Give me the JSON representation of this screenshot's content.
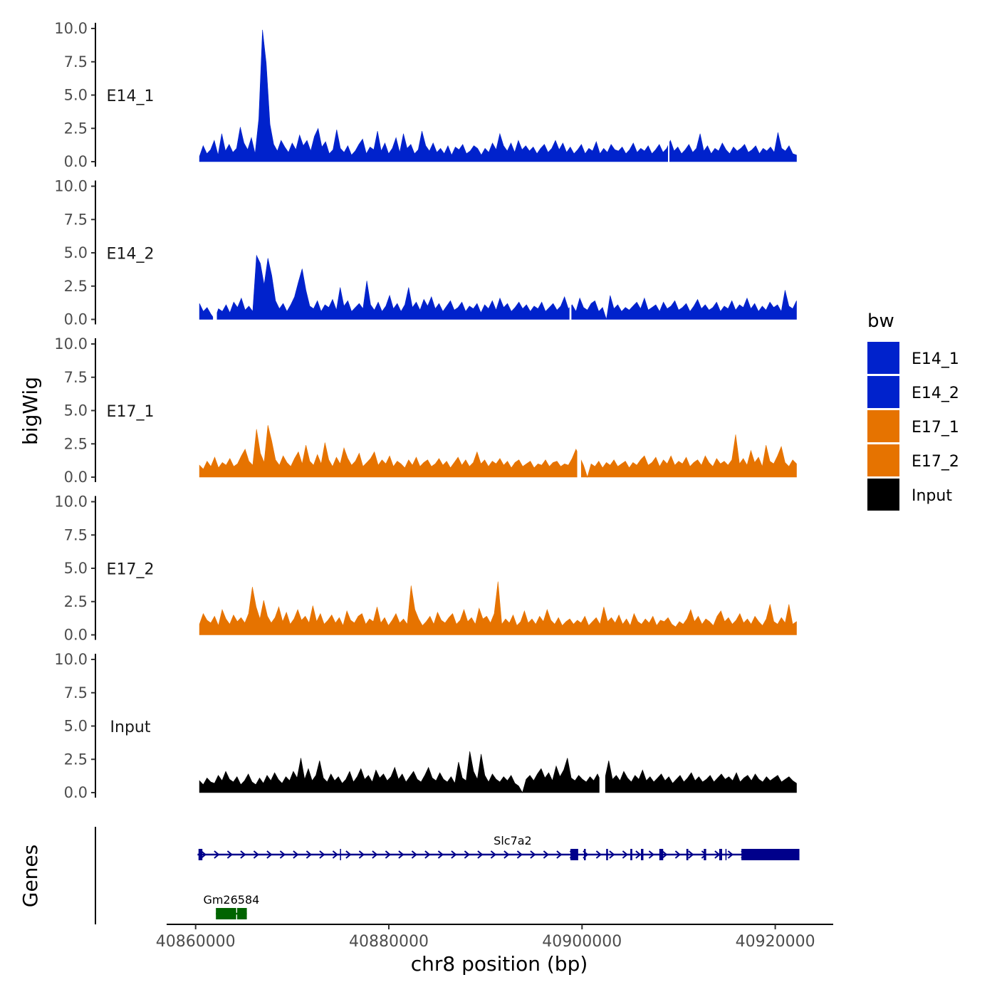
{
  "chart_data": {
    "type": "area",
    "subtype": "genome-track",
    "xlabel": "chr8 position (bp)",
    "ylabel": "bigWig",
    "gene_track_label": "Genes",
    "xlim": [
      40857000,
      40926000
    ],
    "x_ticks": [
      40860000,
      40880000,
      40900000,
      40920000
    ],
    "x_tick_labels": [
      "40860000",
      "40880000",
      "40900000",
      "40920000"
    ],
    "ylim": [
      0,
      10
    ],
    "y_ticks": [
      0,
      2.5,
      5,
      7.5,
      10
    ],
    "y_tick_labels": [
      "0.0",
      "2.5",
      "5.0",
      "7.5",
      "10.0"
    ],
    "legend": {
      "title": "bw",
      "entries": [
        {
          "label": "E14_1",
          "color": "#0022CC"
        },
        {
          "label": "E14_2",
          "color": "#0022CC"
        },
        {
          "label": "E17_1",
          "color": "#E67300"
        },
        {
          "label": "E17_2",
          "color": "#E67300"
        },
        {
          "label": "Input",
          "color": "#000000"
        }
      ]
    },
    "series": [
      {
        "name": "E14_1",
        "color": "#0022CC",
        "x_start": 40860400,
        "x_end": 40922200,
        "values": [
          0.4,
          1.2,
          0.6,
          0.9,
          1.6,
          0.5,
          2.1,
          0.8,
          1.3,
          0.7,
          1.0,
          2.6,
          1.4,
          0.9,
          1.8,
          0.6,
          3.2,
          9.9,
          7.4,
          2.8,
          1.3,
          0.8,
          1.6,
          1.1,
          0.7,
          1.4,
          0.9,
          2.0,
          1.2,
          1.6,
          0.8,
          1.9,
          2.5,
          1.1,
          1.5,
          0.6,
          0.9,
          2.4,
          1.0,
          0.7,
          1.2,
          0.5,
          0.8,
          1.3,
          1.7,
          0.6,
          1.1,
          0.9,
          2.3,
          0.8,
          1.4,
          0.6,
          1.0,
          1.8,
          0.7,
          2.1,
          1.0,
          1.3,
          0.6,
          0.9,
          2.3,
          1.2,
          0.8,
          1.4,
          0.7,
          1.0,
          0.6,
          1.2,
          0.5,
          1.1,
          0.9,
          1.3,
          0.6,
          0.8,
          1.2,
          1.0,
          0.5,
          1.0,
          0.7,
          1.4,
          0.9,
          2.1,
          1.2,
          0.8,
          1.4,
          0.7,
          1.6,
          0.9,
          1.2,
          0.8,
          1.1,
          0.6,
          1.0,
          1.3,
          0.7,
          1.0,
          1.6,
          0.9,
          1.4,
          0.7,
          1.1,
          0.6,
          0.9,
          1.3,
          0.6,
          1.0,
          0.8,
          1.5,
          0.6,
          1.0,
          0.7,
          1.3,
          0.9,
          0.8,
          1.1,
          0.6,
          0.9,
          1.4,
          0.7,
          1.0,
          0.8,
          1.2,
          0.6,
          0.9,
          1.3,
          0.7,
          1.0,
          1.6,
          0.8,
          1.1,
          0.6,
          0.9,
          1.3,
          0.7,
          1.0,
          2.1,
          0.8,
          1.2,
          0.6,
          1.0,
          0.8,
          1.4,
          0.9,
          0.6,
          1.1,
          0.8,
          1.0,
          1.3,
          0.7,
          0.9,
          1.2,
          0.6,
          1.0,
          0.8,
          1.1,
          0.7,
          2.2,
          1.0,
          0.8,
          1.2,
          0.6,
          0.5
        ],
        "gaps": [
          [
            40908900,
            40908950
          ]
        ]
      },
      {
        "name": "E14_2",
        "color": "#0022CC",
        "x_start": 40860400,
        "x_end": 40922200,
        "values": [
          1.2,
          0.6,
          0.9,
          0.4,
          0.0,
          0.8,
          0.6,
          1.1,
          0.5,
          1.3,
          0.9,
          1.6,
          0.7,
          1.0,
          0.6,
          4.8,
          4.2,
          2.6,
          4.6,
          3.3,
          1.4,
          0.8,
          1.2,
          0.6,
          1.1,
          1.7,
          2.8,
          3.8,
          2.2,
          1.0,
          0.8,
          1.4,
          0.6,
          1.1,
          0.9,
          1.5,
          0.7,
          2.4,
          1.0,
          1.4,
          0.6,
          0.9,
          1.2,
          0.8,
          2.9,
          1.1,
          0.7,
          1.3,
          0.6,
          1.0,
          1.8,
          0.8,
          1.2,
          0.6,
          1.1,
          2.4,
          0.9,
          1.3,
          0.7,
          1.5,
          1.0,
          1.7,
          0.8,
          1.2,
          0.6,
          1.0,
          1.4,
          0.7,
          0.9,
          1.3,
          0.6,
          1.0,
          0.8,
          1.2,
          0.5,
          1.1,
          0.8,
          1.4,
          0.7,
          1.6,
          0.9,
          1.2,
          0.6,
          0.9,
          1.3,
          0.8,
          1.1,
          0.6,
          1.0,
          0.8,
          1.3,
          0.6,
          0.9,
          1.2,
          0.7,
          1.0,
          1.7,
          0.8,
          1.1,
          0.6,
          1.6,
          0.9,
          0.7,
          1.2,
          1.4,
          0.6,
          0.9,
          0.0,
          1.8,
          0.8,
          1.1,
          0.6,
          0.9,
          0.7,
          1.0,
          1.3,
          0.8,
          1.6,
          0.7,
          0.9,
          1.1,
          0.6,
          1.3,
          0.8,
          1.0,
          1.4,
          0.7,
          0.9,
          1.2,
          0.6,
          1.0,
          1.5,
          0.8,
          1.1,
          0.7,
          0.9,
          1.3,
          0.6,
          1.0,
          0.8,
          1.4,
          0.7,
          1.1,
          0.9,
          1.6,
          0.8,
          1.2,
          0.6,
          1.0,
          0.7,
          1.3,
          0.9,
          1.1,
          0.6,
          2.2,
          1.0,
          0.8,
          1.4
        ],
        "gaps": [
          [
            40861800,
            40862200
          ],
          [
            40898700,
            40898900
          ]
        ]
      },
      {
        "name": "E17_1",
        "color": "#E67300",
        "x_start": 40860400,
        "x_end": 40922200,
        "values": [
          0.9,
          0.6,
          1.2,
          0.8,
          1.5,
          0.7,
          1.1,
          0.9,
          1.4,
          0.8,
          1.0,
          1.6,
          2.1,
          1.2,
          0.9,
          3.6,
          1.8,
          1.1,
          3.9,
          2.7,
          1.3,
          0.9,
          1.6,
          1.1,
          0.8,
          1.4,
          1.9,
          1.0,
          2.4,
          1.2,
          0.9,
          1.7,
          1.0,
          2.6,
          1.3,
          0.8,
          1.5,
          1.0,
          2.2,
          1.4,
          0.9,
          1.2,
          1.8,
          0.8,
          1.1,
          1.4,
          1.9,
          0.9,
          1.3,
          1.0,
          1.6,
          0.8,
          1.2,
          1.0,
          0.7,
          1.3,
          0.9,
          1.5,
          0.8,
          1.1,
          1.3,
          0.8,
          1.0,
          1.4,
          0.9,
          1.2,
          0.7,
          1.1,
          1.5,
          0.9,
          1.3,
          0.8,
          1.1,
          1.9,
          1.0,
          1.3,
          0.8,
          1.2,
          1.0,
          1.4,
          0.9,
          1.2,
          0.7,
          1.1,
          1.3,
          0.8,
          1.0,
          1.2,
          0.7,
          1.0,
          0.9,
          1.3,
          0.8,
          1.1,
          1.2,
          0.8,
          1.0,
          0.9,
          1.4,
          2.1,
          1.5,
          0.9,
          0.0,
          1.0,
          0.8,
          1.2,
          0.7,
          1.1,
          0.9,
          1.3,
          0.8,
          1.0,
          1.2,
          0.7,
          1.1,
          0.9,
          1.3,
          1.6,
          0.9,
          1.1,
          1.5,
          0.8,
          1.3,
          1.0,
          1.6,
          0.9,
          1.2,
          1.0,
          1.5,
          0.8,
          1.1,
          1.3,
          0.9,
          1.6,
          1.1,
          0.8,
          1.4,
          1.0,
          1.2,
          0.9,
          1.3,
          3.2,
          1.0,
          1.4,
          0.9,
          2.0,
          1.1,
          1.5,
          0.8,
          2.4,
          1.2,
          1.0,
          1.6,
          2.3,
          1.1,
          0.8,
          1.3,
          1.0
        ],
        "gaps": [
          [
            40899500,
            40899900
          ]
        ]
      },
      {
        "name": "E17_2",
        "color": "#E67300",
        "x_start": 40860400,
        "x_end": 40922200,
        "values": [
          0.8,
          1.6,
          1.1,
          0.9,
          1.4,
          0.7,
          1.9,
          1.2,
          0.8,
          1.5,
          1.0,
          1.3,
          0.9,
          1.6,
          3.6,
          2.1,
          1.2,
          2.6,
          1.4,
          0.9,
          1.3,
          2.1,
          1.0,
          1.7,
          0.8,
          1.2,
          1.9,
          1.1,
          1.4,
          0.9,
          2.2,
          1.0,
          1.6,
          0.8,
          1.1,
          1.5,
          0.9,
          1.3,
          0.7,
          1.8,
          1.1,
          0.9,
          1.4,
          1.6,
          0.8,
          1.2,
          1.0,
          2.1,
          0.9,
          1.3,
          0.7,
          1.1,
          1.6,
          0.9,
          1.2,
          0.8,
          3.7,
          1.9,
          1.2,
          0.7,
          1.0,
          1.4,
          0.8,
          1.7,
          1.1,
          0.9,
          1.3,
          1.6,
          0.8,
          1.1,
          1.9,
          1.0,
          1.3,
          0.8,
          2.0,
          1.2,
          1.4,
          0.9,
          1.6,
          4.0,
          0.8,
          1.2,
          0.9,
          1.5,
          0.7,
          1.0,
          1.8,
          0.9,
          1.2,
          0.8,
          1.4,
          1.0,
          1.9,
          1.1,
          0.8,
          1.3,
          0.7,
          1.0,
          1.2,
          0.8,
          1.1,
          0.9,
          1.4,
          0.7,
          1.0,
          1.3,
          0.8,
          2.1,
          1.0,
          1.3,
          0.9,
          1.5,
          0.8,
          1.2,
          0.7,
          1.6,
          1.0,
          0.8,
          1.2,
          0.9,
          1.4,
          0.7,
          1.1,
          1.0,
          1.3,
          0.8,
          0.6,
          1.0,
          0.8,
          1.2,
          1.9,
          1.0,
          1.4,
          0.8,
          1.2,
          1.0,
          0.7,
          1.4,
          1.8,
          1.0,
          1.3,
          0.8,
          1.1,
          1.6,
          0.9,
          1.2,
          0.8,
          1.4,
          1.0,
          0.7,
          1.2,
          2.3,
          1.0,
          0.8,
          1.3,
          0.9,
          2.3,
          0.8,
          1.0
        ],
        "gaps": []
      },
      {
        "name": "Input",
        "color": "#000000",
        "x_start": 40860400,
        "x_end": 40922200,
        "values": [
          0.9,
          0.6,
          1.1,
          0.8,
          0.7,
          1.3,
          0.9,
          1.6,
          1.0,
          0.8,
          1.2,
          0.6,
          0.9,
          1.4,
          0.8,
          0.6,
          1.1,
          0.7,
          1.3,
          0.9,
          1.5,
          1.0,
          0.7,
          1.2,
          0.9,
          1.6,
          1.1,
          2.6,
          1.0,
          1.8,
          0.9,
          1.3,
          2.4,
          1.1,
          0.8,
          1.4,
          0.9,
          1.2,
          0.7,
          1.0,
          1.6,
          0.8,
          1.2,
          1.8,
          1.0,
          1.3,
          0.8,
          1.7,
          1.1,
          1.4,
          0.9,
          1.2,
          1.9,
          1.0,
          1.4,
          0.8,
          1.2,
          1.6,
          1.0,
          0.8,
          1.3,
          1.9,
          1.1,
          0.9,
          1.5,
          1.0,
          0.8,
          1.2,
          0.7,
          2.3,
          1.1,
          0.9,
          3.1,
          1.6,
          1.0,
          2.9,
          1.3,
          0.8,
          1.4,
          1.0,
          0.8,
          1.2,
          0.9,
          1.3,
          0.7,
          0.5,
          0.0,
          1.0,
          1.3,
          0.9,
          1.4,
          1.8,
          1.1,
          1.5,
          0.9,
          2.0,
          1.2,
          1.7,
          2.6,
          1.1,
          0.9,
          1.3,
          1.0,
          0.8,
          1.2,
          0.9,
          1.4,
          0.8,
          1.1,
          2.4,
          1.0,
          1.3,
          0.9,
          1.6,
          1.1,
          0.8,
          1.3,
          1.0,
          1.7,
          0.9,
          1.2,
          0.8,
          1.1,
          1.4,
          0.9,
          1.2,
          0.7,
          1.0,
          1.3,
          0.8,
          1.1,
          1.5,
          0.9,
          1.2,
          0.8,
          1.0,
          1.3,
          0.8,
          1.1,
          1.4,
          1.0,
          1.2,
          0.9,
          1.5,
          0.8,
          1.1,
          1.3,
          0.9,
          1.4,
          1.0,
          0.8,
          1.2,
          0.9,
          1.1,
          1.3,
          0.8,
          1.0,
          1.2,
          0.9,
          0.7
        ],
        "gaps": [
          [
            40901800,
            40902400
          ]
        ]
      }
    ],
    "genes": [
      {
        "name": "Slc7a2",
        "color": "#00008B",
        "strand": "+",
        "start": 40860200,
        "end": 40922500,
        "row": 1,
        "exons": [
          [
            40860300,
            40860700
          ],
          [
            40898800,
            40899600
          ],
          [
            40900200,
            40900300
          ],
          [
            40902500,
            40902650
          ],
          [
            40905000,
            40905200
          ],
          [
            40906100,
            40906350
          ],
          [
            40908000,
            40908400
          ],
          [
            40910800,
            40911000
          ],
          [
            40912600,
            40912850
          ],
          [
            40914200,
            40914500
          ],
          [
            40916500,
            40922500
          ]
        ],
        "thin_ticks": [
          40875000,
          40914900
        ]
      },
      {
        "name": "Gm26584",
        "color": "#006400",
        "strand": "+",
        "start": 40862100,
        "end": 40865300,
        "row": 2,
        "exons": [
          [
            40862100,
            40864200
          ],
          [
            40864300,
            40865300
          ]
        ]
      }
    ]
  }
}
